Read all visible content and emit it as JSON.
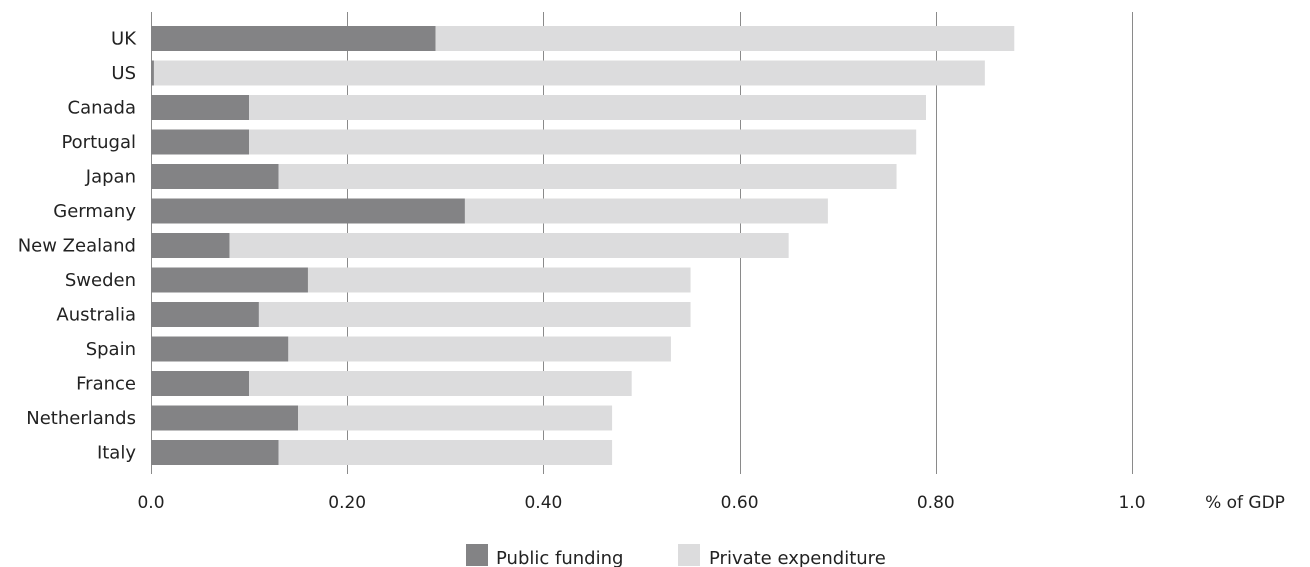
{
  "chart_data": {
    "type": "bar",
    "orientation": "horizontal",
    "stacked": true,
    "categories": [
      "UK",
      "US",
      "Canada",
      "Portugal",
      "Japan",
      "Germany",
      "New Zealand",
      "Sweden",
      "Australia",
      "Spain",
      "France",
      "Netherlands",
      "Italy"
    ],
    "series": [
      {
        "name": "Public funding",
        "color": "#838385",
        "values": [
          0.29,
          0.003,
          0.1,
          0.1,
          0.13,
          0.32,
          0.08,
          0.16,
          0.11,
          0.14,
          0.1,
          0.15,
          0.13
        ]
      },
      {
        "name": "Private expenditure",
        "color": "#dcdcdd",
        "values": [
          0.59,
          0.847,
          0.69,
          0.68,
          0.63,
          0.37,
          0.57,
          0.39,
          0.44,
          0.39,
          0.39,
          0.32,
          0.34
        ]
      }
    ],
    "x_ticks": [
      {
        "value": 0.0,
        "label": "0.0"
      },
      {
        "value": 0.2,
        "label": "0.20"
      },
      {
        "value": 0.4,
        "label": "0.40"
      },
      {
        "value": 0.6,
        "label": "0.60"
      },
      {
        "value": 0.8,
        "label": "0.80"
      },
      {
        "value": 1.0,
        "label": "1.0"
      }
    ],
    "xlabel": "% of GDP",
    "xlim": [
      0,
      1.0
    ],
    "grid": true,
    "legend_position": "bottom-center"
  }
}
